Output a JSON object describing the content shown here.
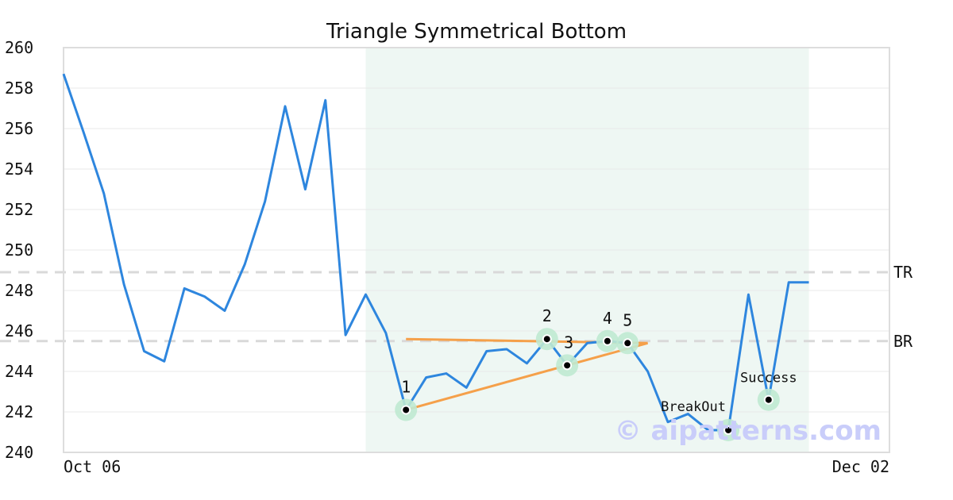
{
  "chart_data": {
    "type": "line",
    "title": "Triangle Symmetrical Bottom",
    "xlabel": "",
    "ylabel": "",
    "ylim": [
      240,
      260
    ],
    "yticks": [
      260,
      258,
      256,
      254,
      252,
      250,
      248,
      246,
      244,
      242,
      240
    ],
    "x_tick_labels": [
      {
        "index": 0,
        "label": "Oct 06"
      },
      {
        "index": 41,
        "label": "Dec 02"
      }
    ],
    "x_count": 42,
    "grid": true,
    "series": [
      {
        "color": "#2e86de",
        "values": [
          258.7,
          255.8,
          252.8,
          248.3,
          245.0,
          244.5,
          248.1,
          247.7,
          247.0,
          249.3,
          252.4,
          257.1,
          253.0,
          257.4,
          245.8,
          247.8,
          245.9,
          242.1,
          243.7,
          243.9,
          243.2,
          245.0,
          245.1,
          244.4,
          245.6,
          244.3,
          245.4,
          245.5,
          245.4,
          244.0,
          241.5,
          241.9,
          241.1,
          241.1,
          247.8,
          242.6,
          248.4,
          248.4,
          null,
          null,
          null,
          null
        ]
      }
    ],
    "highlight_region": {
      "from_index": 15,
      "to_index": 37,
      "color": "#eef7f3"
    },
    "levels": [
      {
        "label": "TR",
        "value": 248.9
      },
      {
        "label": "BR",
        "value": 245.5
      }
    ],
    "trendlines": [
      {
        "from": [
          17,
          245.6
        ],
        "to": [
          29,
          245.4
        ],
        "color": "#f5a04a"
      },
      {
        "from": [
          17,
          242.1
        ],
        "to": [
          29,
          245.4
        ],
        "color": "#f5a04a"
      }
    ],
    "points": [
      {
        "label": "1",
        "index": 17,
        "value": 242.1,
        "label_pos": "above"
      },
      {
        "label": "2",
        "index": 24,
        "value": 245.6,
        "label_pos": "above"
      },
      {
        "label": "3",
        "index": 25,
        "value": 244.3,
        "label_pos": "above-right"
      },
      {
        "label": "4",
        "index": 27,
        "value": 245.5,
        "label_pos": "above"
      },
      {
        "label": "5",
        "index": 28,
        "value": 245.4,
        "label_pos": "above"
      },
      {
        "label": "BreakOut",
        "index": 33,
        "value": 241.1,
        "label_pos": "above-left"
      },
      {
        "label": "Success",
        "index": 35,
        "value": 242.6,
        "label_pos": "above"
      }
    ],
    "colors": {
      "line": "#2e86de",
      "trend": "#f5a04a",
      "point_halo": "#bfe9d2",
      "level": "#d9d9d9",
      "watermark": "#c9cdfa"
    }
  },
  "watermark": "© aipatterns.com"
}
